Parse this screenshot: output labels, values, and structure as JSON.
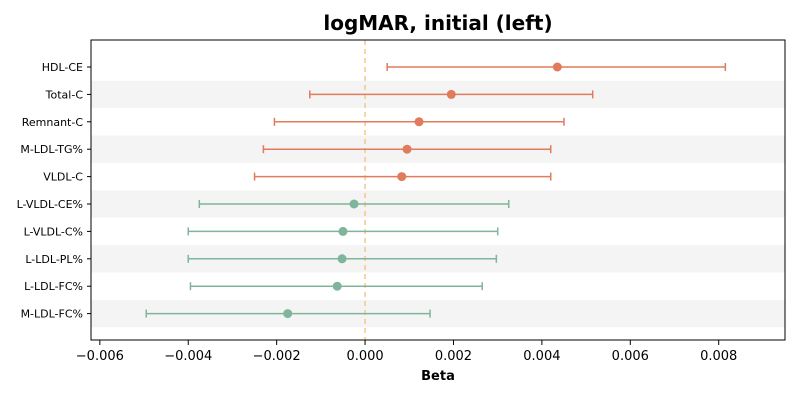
{
  "chart_data": {
    "type": "forest",
    "title": "logMAR, initial (left)",
    "xlabel": "Beta",
    "ylabel": "",
    "xlim": [
      -0.0062,
      0.0095
    ],
    "xticks": [
      -0.006,
      -0.004,
      -0.002,
      0.0,
      0.002,
      0.004,
      0.006,
      0.008
    ],
    "xtick_labels": [
      "−0.006",
      "−0.004",
      "−0.002",
      "0.000",
      "0.002",
      "0.004",
      "0.006",
      "0.008"
    ],
    "reference_line": 0,
    "alternating_row_shading": true,
    "colors": {
      "positive": "#e07b5c",
      "negative": "#7fb59a",
      "reference": "#f5c88a",
      "band": "#f4f4f4"
    },
    "rows": [
      {
        "label": "HDL-CE",
        "beta": 0.00435,
        "lower": 0.0005,
        "upper": 0.00815
      },
      {
        "label": "Total-C",
        "beta": 0.00195,
        "lower": -0.00125,
        "upper": 0.00515
      },
      {
        "label": "Remnant-C",
        "beta": 0.00122,
        "lower": -0.00205,
        "upper": 0.0045
      },
      {
        "label": "M-LDL-TG%",
        "beta": 0.00095,
        "lower": -0.0023,
        "upper": 0.0042
      },
      {
        "label": "VLDL-C",
        "beta": 0.00083,
        "lower": -0.0025,
        "upper": 0.0042
      },
      {
        "label": "L-VLDL-CE%",
        "beta": -0.00025,
        "lower": -0.00375,
        "upper": 0.00325
      },
      {
        "label": "L-VLDL-C%",
        "beta": -0.0005,
        "lower": -0.004,
        "upper": 0.003
      },
      {
        "label": "L-LDL-PL%",
        "beta": -0.00052,
        "lower": -0.004,
        "upper": 0.00297
      },
      {
        "label": "L-LDL-FC%",
        "beta": -0.00063,
        "lower": -0.00395,
        "upper": 0.00265
      },
      {
        "label": "M-LDL-FC%",
        "beta": -0.00175,
        "lower": -0.00495,
        "upper": 0.00147
      }
    ]
  }
}
